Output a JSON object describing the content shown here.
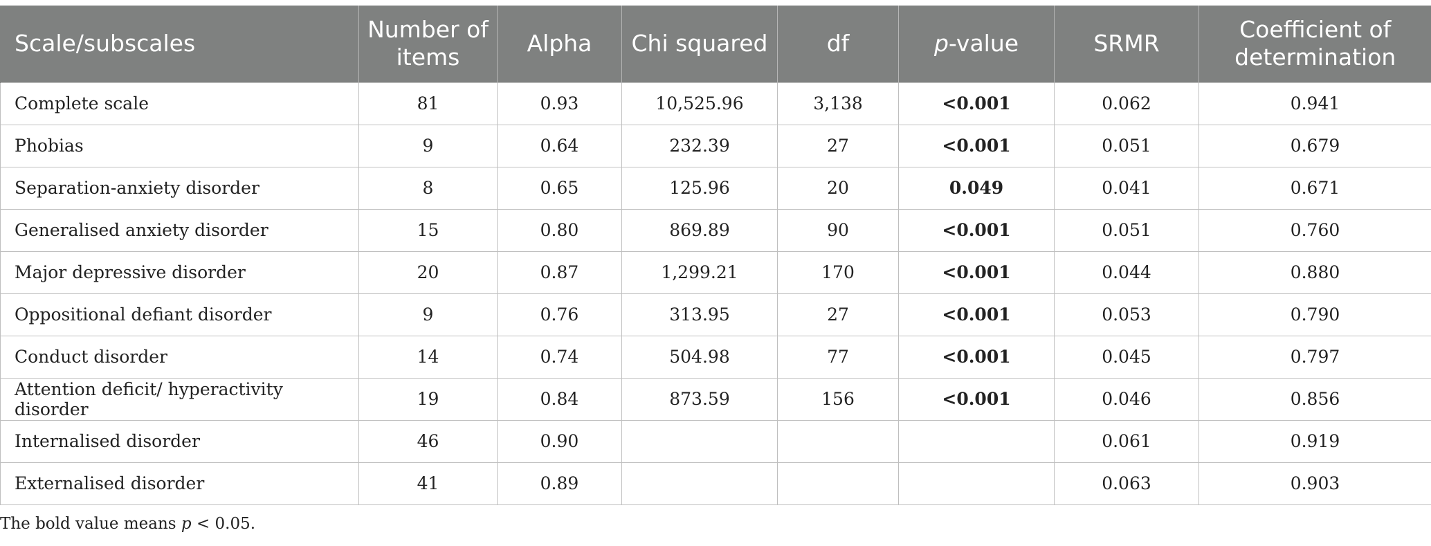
{
  "table": {
    "headers": [
      "Scale/subscales",
      "Number of items",
      "Alpha",
      "Chi squared",
      "df",
      "p-value",
      "SRMR",
      "Coefficient of determination"
    ],
    "header_pvalue": {
      "p": "p",
      "rest": "-value"
    },
    "rows": [
      {
        "scale": "Complete scale",
        "items": "81",
        "alpha": "0.93",
        "chi": "10,525.96",
        "df": "3,138",
        "p": "<0.001",
        "p_bold": true,
        "srmr": "0.062",
        "cod": "0.941"
      },
      {
        "scale": "Phobias",
        "items": "9",
        "alpha": "0.64",
        "chi": "232.39",
        "df": "27",
        "p": "<0.001",
        "p_bold": true,
        "srmr": "0.051",
        "cod": "0.679"
      },
      {
        "scale": "Separation-anxiety disorder",
        "items": "8",
        "alpha": "0.65",
        "chi": "125.96",
        "df": "20",
        "p": "0.049",
        "p_bold": true,
        "srmr": "0.041",
        "cod": "0.671"
      },
      {
        "scale": "Generalised anxiety disorder",
        "items": "15",
        "alpha": "0.80",
        "chi": "869.89",
        "df": "90",
        "p": "<0.001",
        "p_bold": true,
        "srmr": "0.051",
        "cod": "0.760"
      },
      {
        "scale": "Major depressive disorder",
        "items": "20",
        "alpha": "0.87",
        "chi": "1,299.21",
        "df": "170",
        "p": "<0.001",
        "p_bold": true,
        "srmr": "0.044",
        "cod": "0.880"
      },
      {
        "scale": "Oppositional defiant disorder",
        "items": "9",
        "alpha": "0.76",
        "chi": "313.95",
        "df": "27",
        "p": "<0.001",
        "p_bold": true,
        "srmr": "0.053",
        "cod": "0.790"
      },
      {
        "scale": "Conduct disorder",
        "items": "14",
        "alpha": "0.74",
        "chi": "504.98",
        "df": "77",
        "p": "<0.001",
        "p_bold": true,
        "srmr": "0.045",
        "cod": "0.797"
      },
      {
        "scale": "Attention deficit/ hyperactivity disorder",
        "items": "19",
        "alpha": "0.84",
        "chi": "873.59",
        "df": "156",
        "p": "<0.001",
        "p_bold": true,
        "srmr": "0.046",
        "cod": "0.856"
      },
      {
        "scale": "Internalised disorder",
        "items": "46",
        "alpha": "0.90",
        "chi": "",
        "df": "",
        "p": "",
        "p_bold": false,
        "srmr": "0.061",
        "cod": "0.919"
      },
      {
        "scale": "Externalised disorder",
        "items": "41",
        "alpha": "0.89",
        "chi": "",
        "df": "",
        "p": "",
        "p_bold": false,
        "srmr": "0.063",
        "cod": "0.903"
      }
    ]
  },
  "footnote": {
    "before": "The bold value means ",
    "italic": "p",
    "after": " < 0.05."
  },
  "colors": {
    "header_bg": "#7f8180",
    "header_text": "#ffffff",
    "grid": "#bfbfbf"
  }
}
